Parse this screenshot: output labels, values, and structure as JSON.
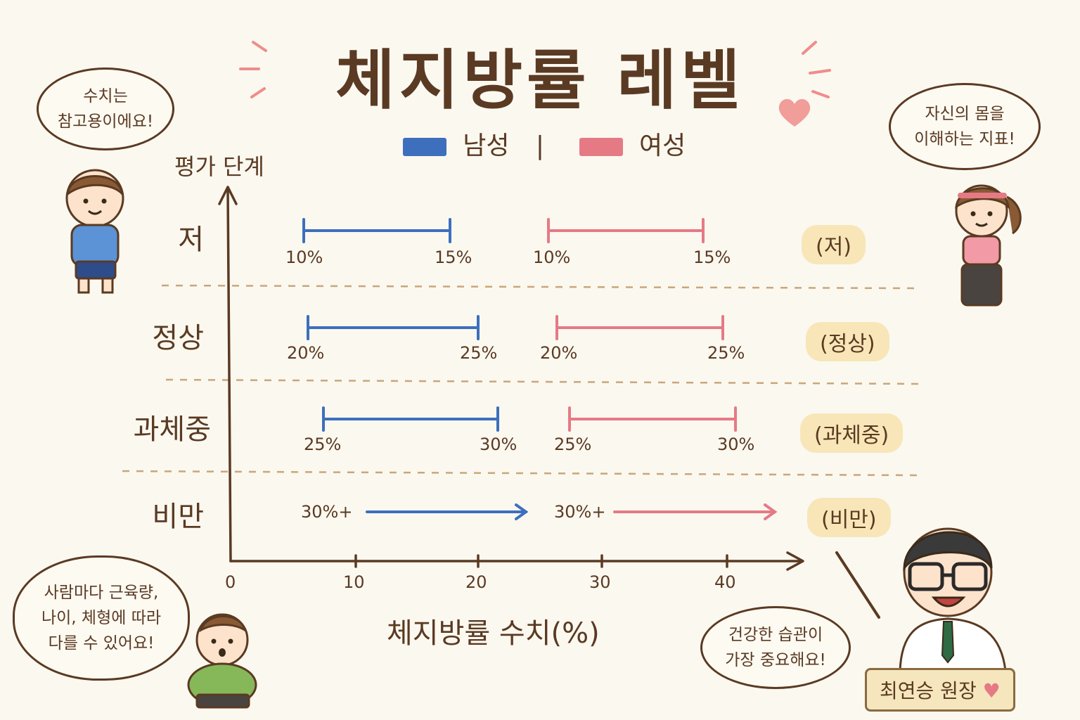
{
  "header": {
    "title": "체지방률 레벨",
    "legend_male": "남성",
    "legend_sep": "|",
    "legend_female": "여성"
  },
  "colors": {
    "male": "#3d6fbd",
    "female": "#e57a85",
    "axis": "#5a3a22",
    "badge": "#f8e6b8"
  },
  "chart_data": {
    "type": "range",
    "ylabel": "평가 단계",
    "xlabel": "체지방률 수치(%)",
    "xticks": [
      "0",
      "10",
      "20",
      "30",
      "40"
    ],
    "xlim": [
      0,
      45
    ],
    "categories": [
      "저",
      "정상",
      "과체중",
      "비만"
    ],
    "badges": [
      "(저)",
      "(정상)",
      "(과체중)",
      "(비만)"
    ],
    "series": [
      {
        "name": "남성",
        "ranges": [
          {
            "category": "저",
            "from": "10%",
            "to": "15%"
          },
          {
            "category": "정상",
            "from": "20%",
            "to": "25%"
          },
          {
            "category": "과체중",
            "from": "25%",
            "to": "30%"
          },
          {
            "category": "비만",
            "from": "30%+",
            "to": null
          }
        ]
      },
      {
        "name": "여성",
        "ranges": [
          {
            "category": "저",
            "from": "10%",
            "to": "15%"
          },
          {
            "category": "정상",
            "from": "20%",
            "to": "25%"
          },
          {
            "category": "과체중",
            "from": "25%",
            "to": "30%"
          },
          {
            "category": "비만",
            "from": "30%+",
            "to": null
          }
        ]
      }
    ]
  },
  "bubbles": {
    "top_left": "수치는\n참고용이에요!",
    "top_right": "자신의 몸을\n이해하는 지표!",
    "bottom_left": "사람마다 근육량,\n나이, 체형에 따라\n다를 수 있어요!",
    "bottom_right": "건강한 습관이\n가장 중요해요!"
  },
  "nameplate": {
    "text": "최연승 원장",
    "icon": "heart-icon"
  }
}
